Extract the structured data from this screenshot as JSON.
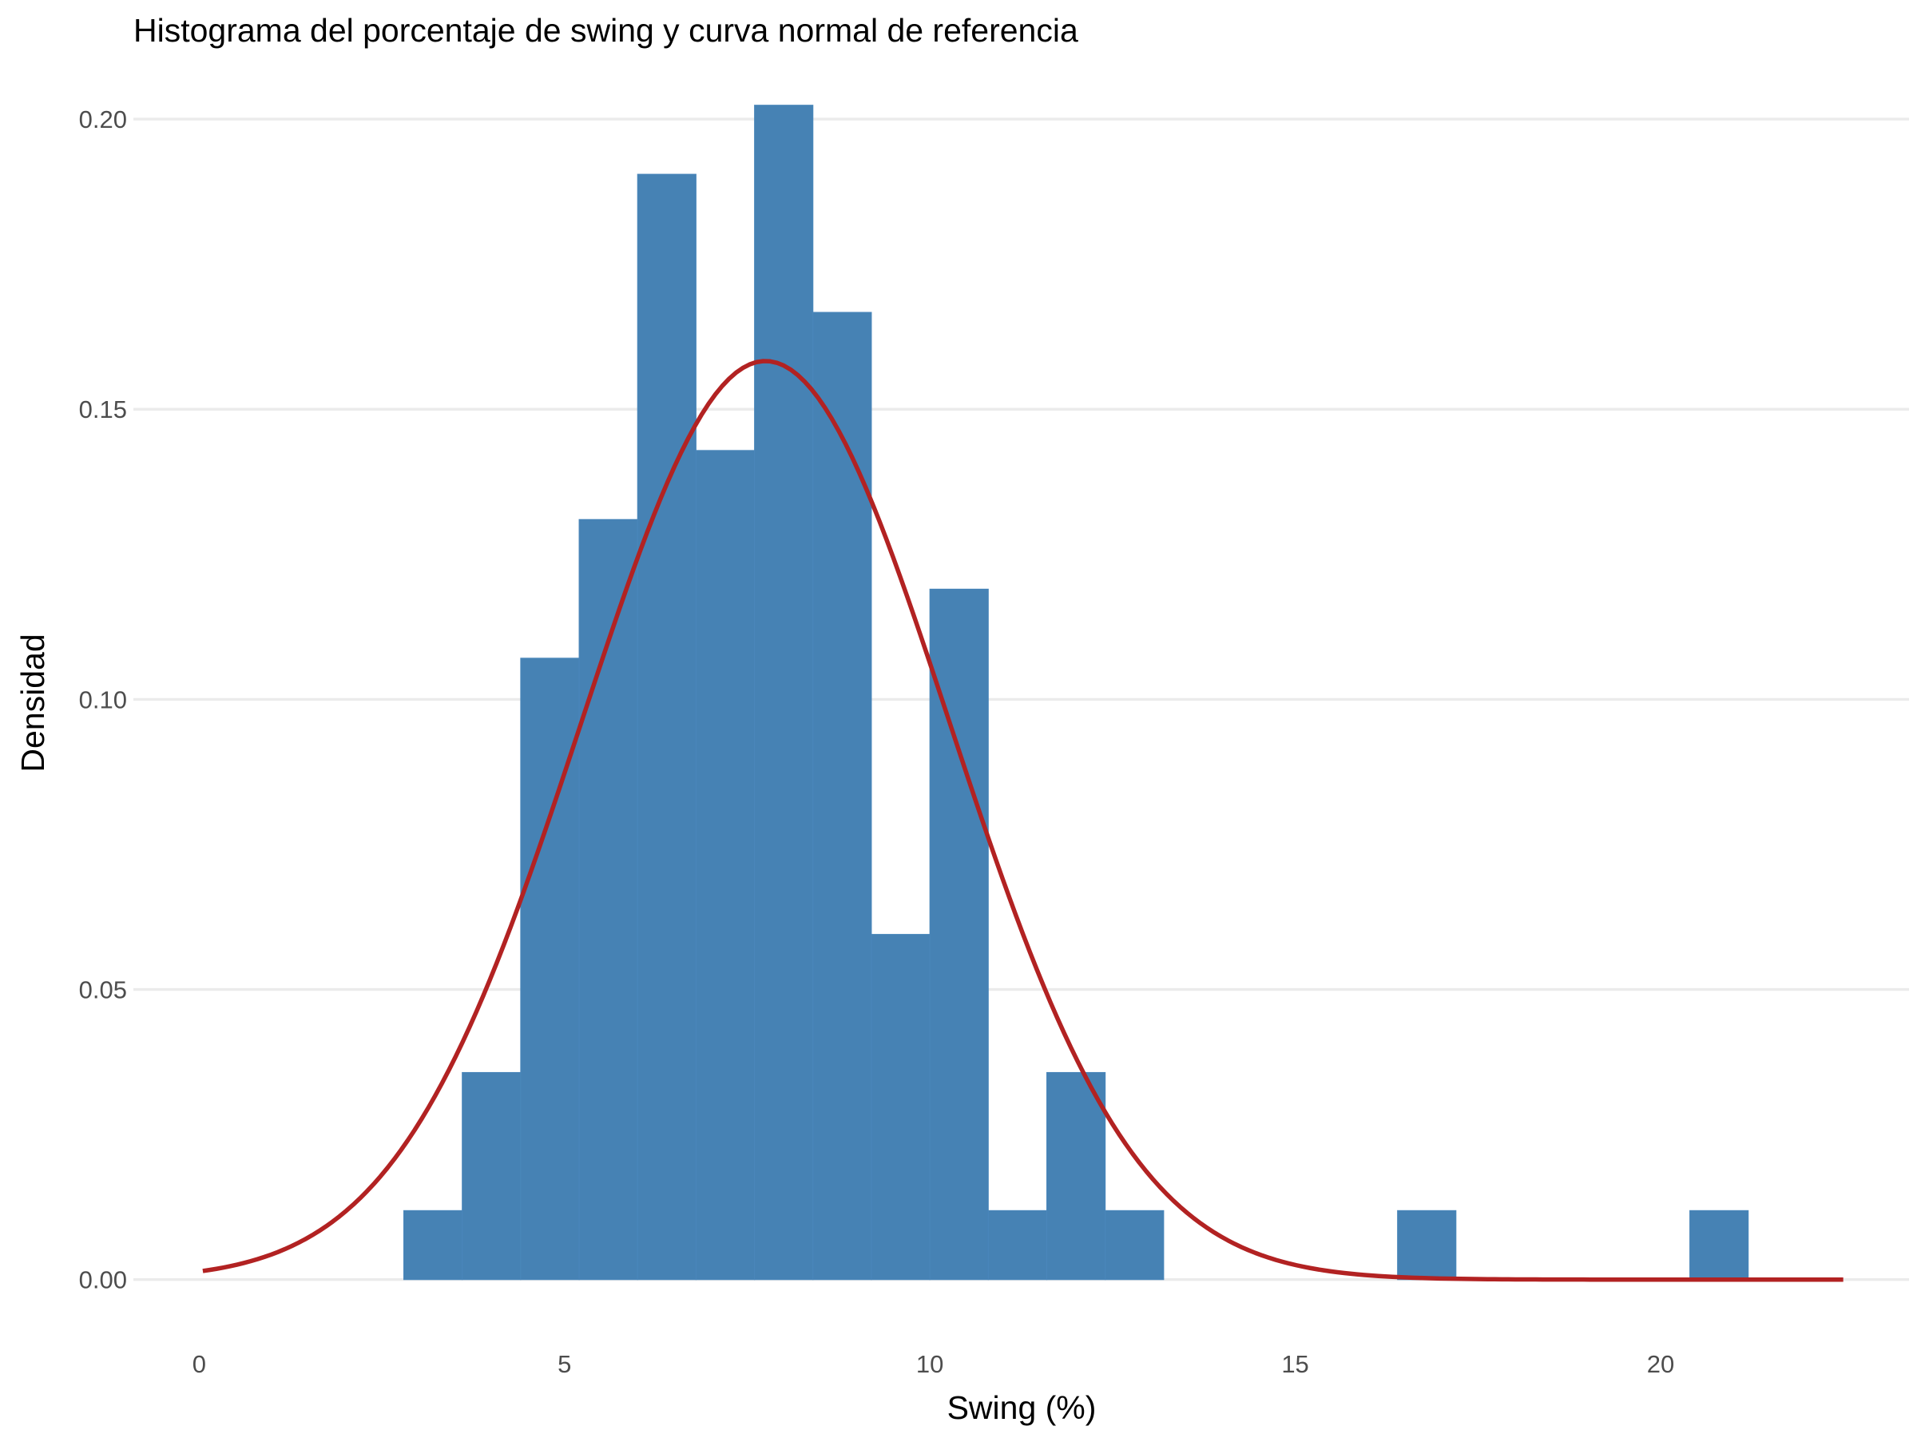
{
  "chart_data": {
    "type": "bar",
    "title": "Histograma del porcentaje de swing y curva normal de referencia",
    "xlabel": "Swing (%)",
    "ylabel": "Densidad",
    "xlim": [
      -0.9,
      23.4
    ],
    "ylim": [
      -0.0105,
      0.2102
    ],
    "x_ticks": [
      0,
      5,
      10,
      15,
      20
    ],
    "x_tick_labels": [
      "0",
      "5",
      "10",
      "15",
      "20"
    ],
    "y_ticks": [
      0,
      0.05,
      0.1,
      0.15,
      0.2
    ],
    "y_tick_labels": [
      "0.00",
      "0.05",
      "0.10",
      "0.15",
      "0.20"
    ],
    "grid": "horizontal major",
    "legend": "none",
    "colors": {
      "bars": "#4682b4",
      "curve": "#b22222"
    },
    "bin_width": 0.8,
    "bins": [
      {
        "x0": 2.8,
        "x1": 3.6,
        "density": 0.0119
      },
      {
        "x0": 3.6,
        "x1": 4.4,
        "density": 0.0357
      },
      {
        "x0": 4.4,
        "x1": 5.2,
        "density": 0.1071
      },
      {
        "x0": 5.2,
        "x1": 6.0,
        "density": 0.131
      },
      {
        "x0": 6.0,
        "x1": 6.8,
        "density": 0.1905
      },
      {
        "x0": 6.8,
        "x1": 7.6,
        "density": 0.1429
      },
      {
        "x0": 7.6,
        "x1": 8.4,
        "density": 0.2024
      },
      {
        "x0": 8.4,
        "x1": 9.2,
        "density": 0.1667
      },
      {
        "x0": 9.2,
        "x1": 10.0,
        "density": 0.0595
      },
      {
        "x0": 10.0,
        "x1": 10.8,
        "density": 0.119
      },
      {
        "x0": 10.8,
        "x1": 11.6,
        "density": 0.0119
      },
      {
        "x0": 11.6,
        "x1": 12.4,
        "density": 0.0357
      },
      {
        "x0": 12.4,
        "x1": 13.2,
        "density": 0.0119
      },
      {
        "x0": 16.4,
        "x1": 17.2,
        "density": 0.0119
      },
      {
        "x0": 20.4,
        "x1": 21.2,
        "density": 0.0119
      }
    ],
    "normal_curve": {
      "mean": 7.75,
      "sd": 2.52,
      "x_range": [
        0.05,
        22.5
      ]
    }
  }
}
